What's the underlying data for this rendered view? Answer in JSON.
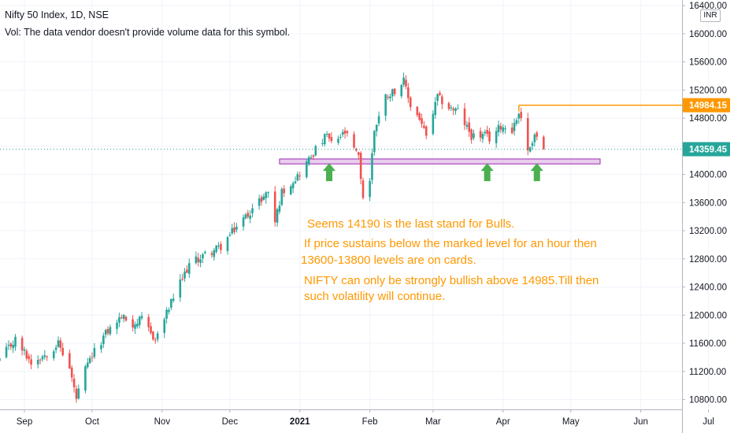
{
  "header": {
    "symbol_title": "Nifty 50 Index, 1D, NSE",
    "volume_note": "Vol: The data vendor doesn't provide volume data for this symbol."
  },
  "currency_badge": "INR",
  "annotations": [
    "Seems 14190 is the last stand for Bulls.",
    "If price sustains below the marked level for an hour then",
    "13600-13800 levels are on cards.",
    "NIFTY can only be strongly bullish above 14985.Till then",
    "such volatility will continue."
  ],
  "colors": {
    "up_candle": "#26a69a",
    "down_candle": "#ef5350",
    "annotation_text": "#ff9800",
    "resistance_line": "#ff9800",
    "support_zone_fill": "#e1bee7",
    "support_zone_border": "#9c27b0",
    "arrow": "#4caf50",
    "last_price_badge": "#26a69a"
  },
  "chart_data": {
    "type": "candlestick",
    "y_axis": {
      "ticks": [
        10800,
        11200,
        11600,
        12000,
        12400,
        12800,
        13200,
        13600,
        14000,
        14400,
        14800,
        15200,
        15600,
        16000,
        16400
      ],
      "tick_labels": [
        "10800.00",
        "11200.00",
        "11600.00",
        "12000.00",
        "12400.00",
        "12800.00",
        "13200.00",
        "13600.00",
        "14000.00",
        "14400.00",
        "14800.00",
        "15200.00",
        "15600.00",
        "16000.00",
        "16400.00"
      ],
      "range": [
        10660,
        16480
      ]
    },
    "x_axis": {
      "ticks": [
        {
          "label": "Sep",
          "date": "2020-09-01"
        },
        {
          "label": "Oct",
          "date": "2020-10-01"
        },
        {
          "label": "Nov",
          "date": "2020-11-01"
        },
        {
          "label": "Dec",
          "date": "2020-12-01"
        },
        {
          "label": "2021",
          "date": "2021-01-01"
        },
        {
          "label": "Feb",
          "date": "2021-02-01"
        },
        {
          "label": "Mar",
          "date": "2021-03-01"
        },
        {
          "label": "Apr",
          "date": "2021-04-01"
        },
        {
          "label": "May",
          "date": "2021-05-01"
        },
        {
          "label": "Jun",
          "date": "2021-06-01"
        },
        {
          "label": "Jul",
          "date": "2021-07-01"
        }
      ]
    },
    "price_path": [
      [
        "2020-08-21",
        11370
      ],
      [
        "2020-08-28",
        11650
      ],
      [
        "2020-09-01",
        11470
      ],
      [
        "2020-09-04",
        11330
      ],
      [
        "2020-09-11",
        11460
      ],
      [
        "2020-09-16",
        11600
      ],
      [
        "2020-09-21",
        11240
      ],
      [
        "2020-09-24",
        10810
      ],
      [
        "2020-09-28",
        11220
      ],
      [
        "2020-10-01",
        11420
      ],
      [
        "2020-10-07",
        11740
      ],
      [
        "2020-10-14",
        11980
      ],
      [
        "2020-10-19",
        11870
      ],
      [
        "2020-10-23",
        11930
      ],
      [
        "2020-10-29",
        11650
      ],
      [
        "2020-11-06",
        12250
      ],
      [
        "2020-11-13",
        12720
      ],
      [
        "2020-11-20",
        12860
      ],
      [
        "2020-11-27",
        12970
      ],
      [
        "2020-12-04",
        13260
      ],
      [
        "2020-12-11",
        13510
      ],
      [
        "2020-12-18",
        13760
      ],
      [
        "2020-12-21",
        13330
      ],
      [
        "2020-12-24",
        13750
      ],
      [
        "2020-12-31",
        13980
      ],
      [
        "2021-01-08",
        14350
      ],
      [
        "2021-01-13",
        14560
      ],
      [
        "2021-01-15",
        14430
      ],
      [
        "2021-01-21",
        14590
      ],
      [
        "2021-01-27",
        14240
      ],
      [
        "2021-01-29",
        13680
      ],
      [
        "2021-02-01",
        13920
      ],
      [
        "2021-02-03",
        14640
      ],
      [
        "2021-02-08",
        15110
      ],
      [
        "2021-02-12",
        15200
      ],
      [
        "2021-02-16",
        15320
      ],
      [
        "2021-02-19",
        14980
      ],
      [
        "2021-02-23",
        14800
      ],
      [
        "2021-02-26",
        14530
      ],
      [
        "2021-03-03",
        15100
      ],
      [
        "2021-03-08",
        14950
      ],
      [
        "2021-03-12",
        14900
      ],
      [
        "2021-03-18",
        14550
      ],
      [
        "2021-03-24",
        14550
      ],
      [
        "2021-03-26",
        14510
      ],
      [
        "2021-03-31",
        14690
      ],
      [
        "2021-04-05",
        14640
      ],
      [
        "2021-04-08",
        14870
      ],
      [
        "2021-04-09",
        14830
      ],
      [
        "2021-04-12",
        14310
      ],
      [
        "2021-04-15",
        14580
      ],
      [
        "2021-04-19",
        14359.45
      ]
    ],
    "price_lines": [
      {
        "label": "14984.15",
        "value": 14984.15,
        "from_date": "2021-04-08"
      },
      {
        "label": "14359.45",
        "value": 14359.45,
        "style": "dotted",
        "role": "last-price"
      }
    ],
    "zones": [
      {
        "from_date": "2020-12-23",
        "to_date": "2021-05-14",
        "low": 14150,
        "high": 14220
      }
    ],
    "markers": [
      {
        "type": "arrow-up",
        "date": "2021-01-14",
        "value": 14050
      },
      {
        "type": "arrow-up",
        "date": "2021-03-25",
        "value": 14050
      },
      {
        "type": "arrow-up",
        "date": "2021-04-16",
        "value": 14050
      }
    ]
  }
}
